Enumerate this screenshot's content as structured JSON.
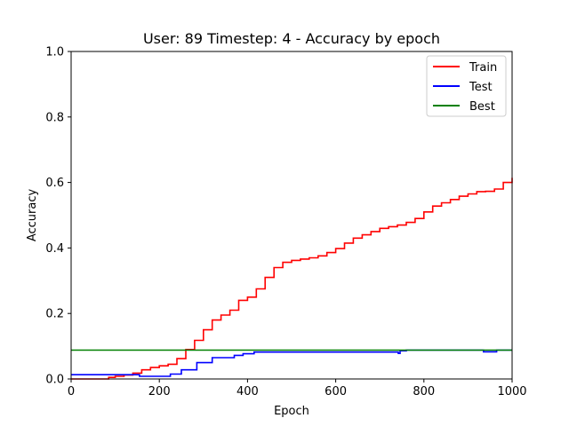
{
  "chart_data": {
    "type": "line",
    "title": "User: 89 Timestep: 4 - Accuracy by epoch",
    "xlabel": "Epoch",
    "ylabel": "Accuracy",
    "xlim": [
      0,
      1000
    ],
    "ylim": [
      0,
      1.0
    ],
    "x_ticks": [
      "0",
      "200",
      "400",
      "600",
      "800",
      "1000"
    ],
    "x_tick_values": [
      0,
      200,
      400,
      600,
      800,
      1000
    ],
    "y_ticks": [
      "0.0",
      "0.2",
      "0.4",
      "0.6",
      "0.8",
      "1.0"
    ],
    "y_tick_values": [
      0,
      0.2,
      0.4,
      0.6,
      0.8,
      1.0
    ],
    "grid": false,
    "legend_position": "top-right",
    "series": [
      {
        "name": "Train",
        "color": "#ff0000",
        "step": true,
        "x": [
          0,
          85,
          100,
          120,
          140,
          160,
          180,
          200,
          220,
          240,
          260,
          280,
          300,
          320,
          340,
          360,
          380,
          400,
          420,
          440,
          460,
          480,
          500,
          520,
          540,
          560,
          580,
          600,
          620,
          640,
          660,
          680,
          700,
          720,
          740,
          760,
          780,
          800,
          820,
          840,
          860,
          880,
          900,
          920,
          940,
          960,
          980,
          1000
        ],
        "y": [
          0.0,
          0.005,
          0.008,
          0.012,
          0.018,
          0.028,
          0.035,
          0.04,
          0.045,
          0.062,
          0.09,
          0.118,
          0.15,
          0.18,
          0.195,
          0.21,
          0.24,
          0.25,
          0.275,
          0.31,
          0.34,
          0.356,
          0.362,
          0.366,
          0.37,
          0.376,
          0.386,
          0.398,
          0.415,
          0.43,
          0.44,
          0.45,
          0.46,
          0.465,
          0.47,
          0.478,
          0.49,
          0.51,
          0.528,
          0.538,
          0.548,
          0.558,
          0.565,
          0.572,
          0.573,
          0.58,
          0.6,
          0.614
        ]
      },
      {
        "name": "Test",
        "color": "#0000ff",
        "step": true,
        "x": [
          0,
          155,
          225,
          250,
          285,
          320,
          370,
          390,
          415,
          742,
          746,
          760,
          935,
          965,
          1000
        ],
        "y": [
          0.013,
          0.008,
          0.015,
          0.028,
          0.05,
          0.065,
          0.072,
          0.077,
          0.082,
          0.078,
          0.086,
          0.088,
          0.083,
          0.088,
          0.088
        ]
      },
      {
        "name": "Best",
        "color": "#008000",
        "step": false,
        "x": [
          0,
          1000
        ],
        "y": [
          0.088,
          0.088
        ]
      }
    ]
  }
}
